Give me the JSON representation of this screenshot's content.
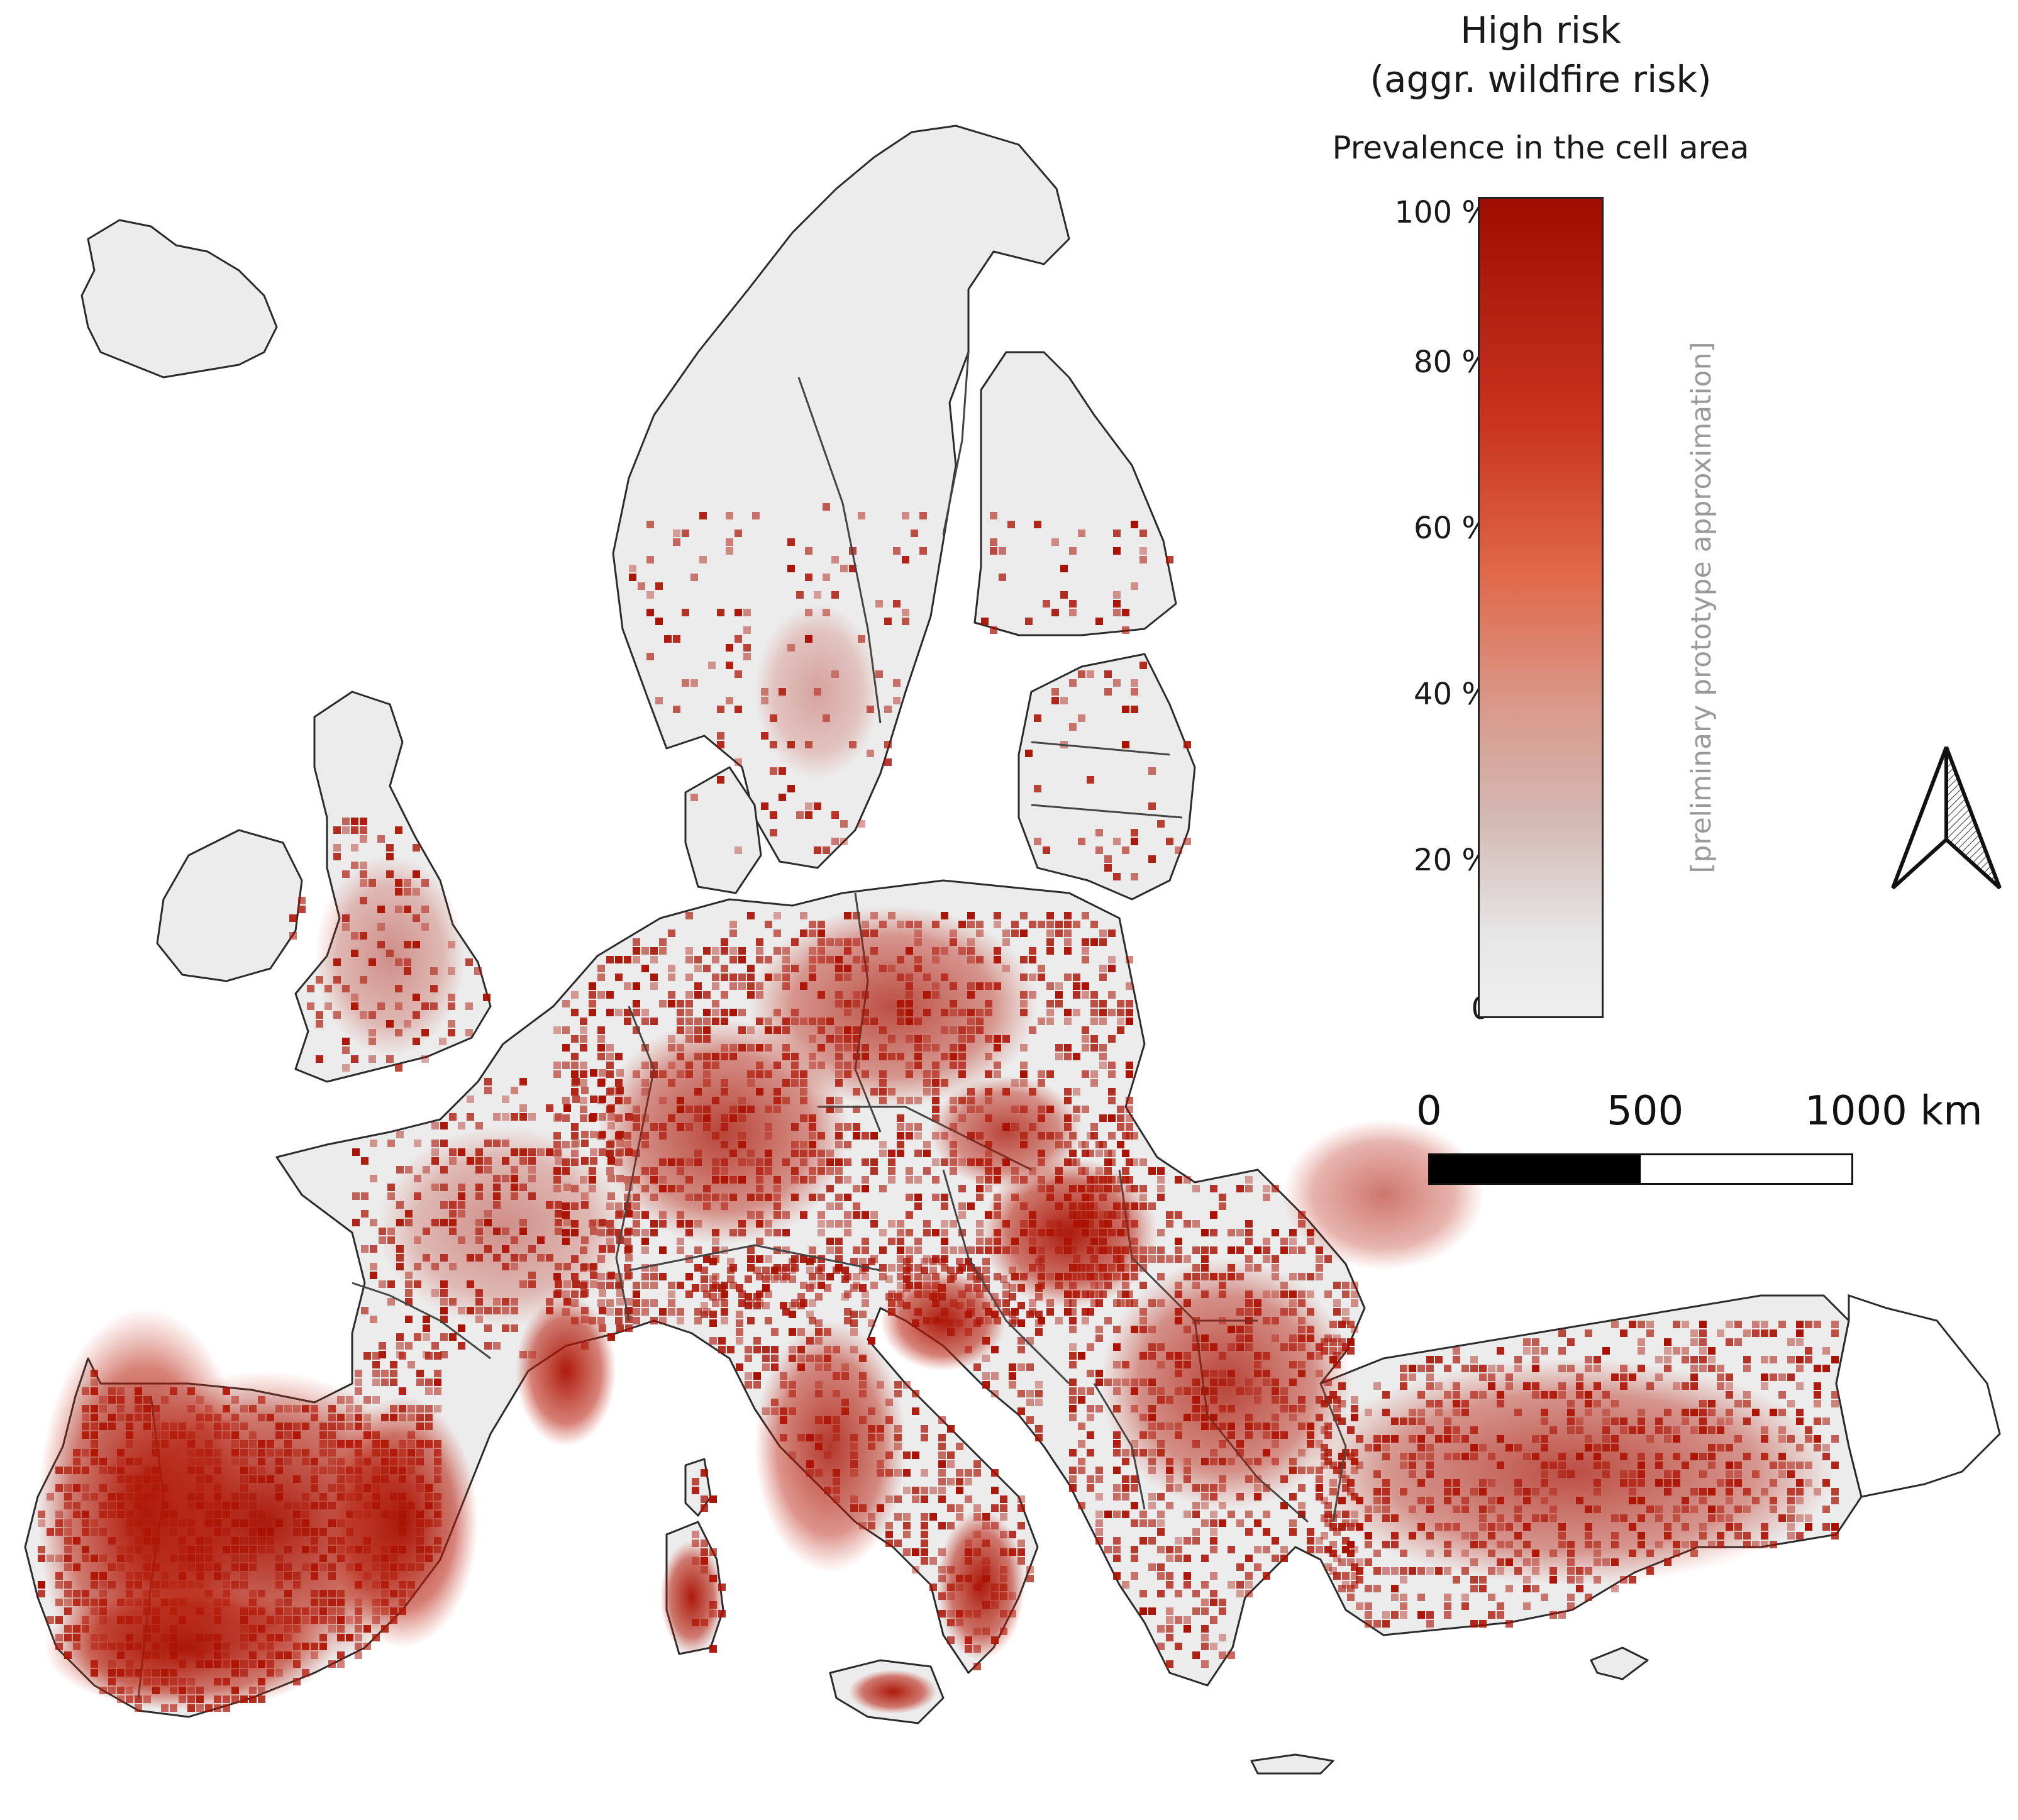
{
  "legend": {
    "title_line1": "High risk",
    "title_line2": "(aggr. wildfire risk)",
    "subtitle": "Prevalence in the cell area",
    "ticks": [
      "100 %",
      "80 %",
      "60 %",
      "40 %",
      "20 %",
      "0"
    ],
    "side_note": "[preliminary prototype approximation]",
    "color_high": "#a00d00",
    "color_low": "#efefef"
  },
  "scale_bar": {
    "labels": [
      "0",
      "500",
      "1000 km"
    ]
  },
  "north_arrow": {
    "icon": "north-arrow-icon"
  },
  "map": {
    "land_color": "#ececec",
    "border_color": "#333333",
    "risk_color": "#a80f00"
  }
}
